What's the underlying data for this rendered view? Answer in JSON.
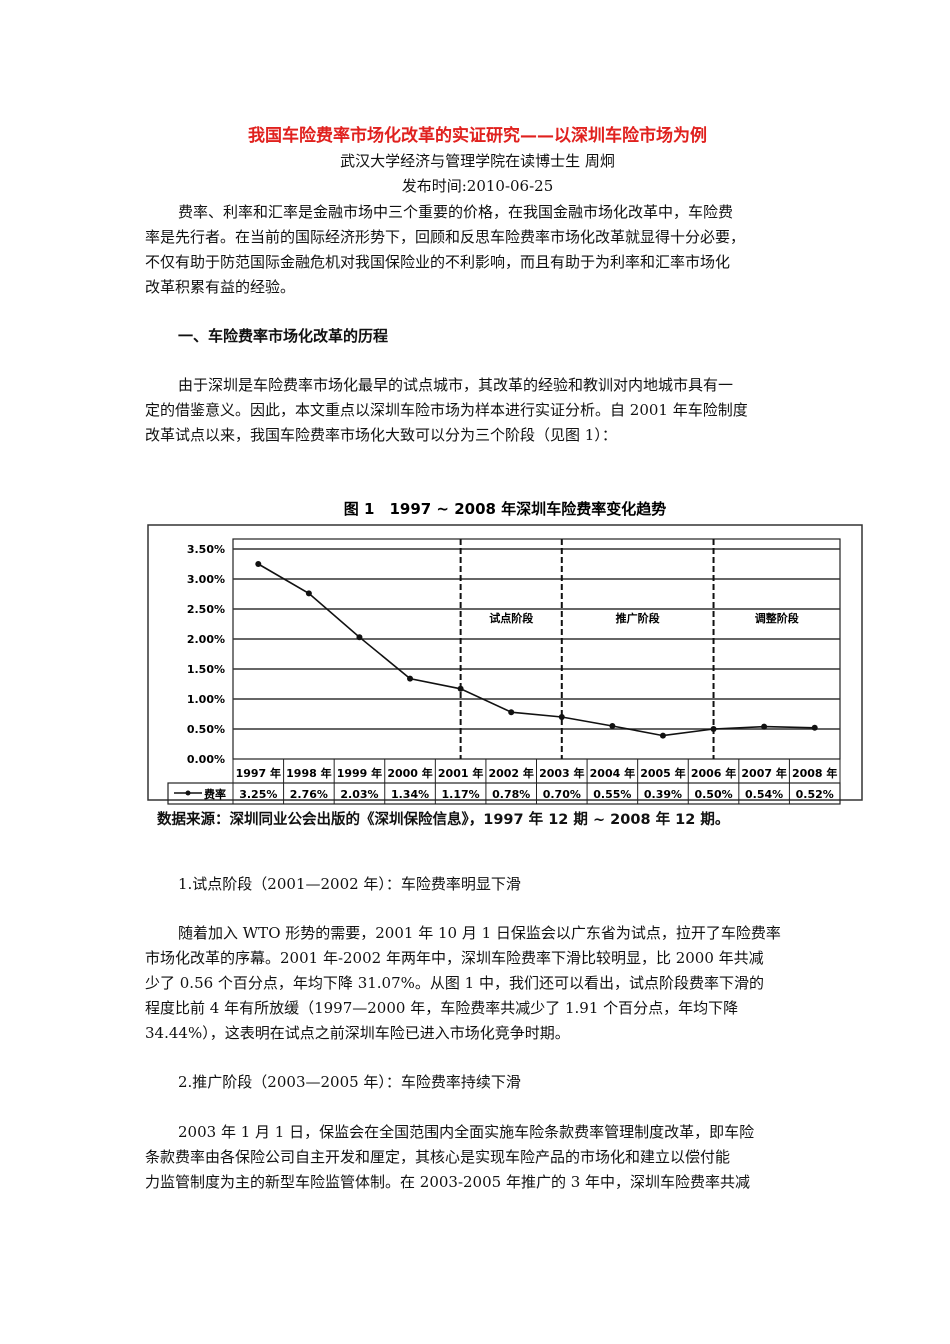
{
  "article": {
    "title": "我国车险费率市场化改革的实证研究——以深圳车险市场为例",
    "author": "武汉大学经济与管理学院在读博士生 周炯",
    "publish_date": "发布时间:2010-06-25",
    "p1": [
      "费率、利率和汇率是金融市场中三个重要的价格，在我国金融市场化改革中，车险费",
      "率是先行者。在当前的国际经济形势下，回顾和反思车险费率市场化改革就显得十分必要，",
      "不仅有助于防范国际金融危机对我国保险业的不利影响，而且有助于为利率和汇率市场化",
      "改革积累有益的经验。"
    ],
    "heading1": "一、车险费率市场化改革的历程",
    "p2": [
      "由于深圳是车险费率市场化最早的试点城市，其改革的经验和教训对内地城市具有一",
      "定的借鉴意义。因此，本文重点以深圳车险市场为样本进行实证分析。自 2001 年车险制度",
      "改革试点以来，我国车险费率市场化大致可以分为三个阶段（见图 1）："
    ],
    "sub1": "1.试点阶段（2001—2002 年）：车险费率明显下滑",
    "p3": [
      "随着加入 WTO 形势的需要，2001 年 10 月 1 日保监会以广东省为试点，拉开了车险费率",
      "市场化改革的序幕。2001 年-2002 年两年中，深圳车险费率下滑比较明显，比 2000 年共减",
      "少了 0.56 个百分点，年均下降 31.07%。从图 1 中，我们还可以看出，试点阶段费率下滑的",
      "程度比前 4 年有所放缓（1997—2000 年，车险费率共减少了 1.91 个百分点，年均下降",
      "34.44%），这表明在试点之前深圳车险已进入市场化竞争时期。"
    ],
    "sub2": "2.推广阶段（2003—2005 年）：车险费率持续下滑",
    "p4": [
      "2003 年 1 月 1 日，保监会在全国范围内全面实施车险条款费率管理制度改革，即车险",
      "条款费率由各保险公司自主开发和厘定，其核心是实现车险产品的市场化和建立以偿付能",
      "力监管制度为主的新型车险监管体制。在 2003-2005 年推广的 3 年中，深圳车险费率共减"
    ]
  },
  "colors": {
    "title": "#e0211e",
    "text": "#111111"
  },
  "chart_data": {
    "type": "line",
    "title": "图 1　1997 ~ 2008 年深圳车险费率变化趋势",
    "categories": [
      "1997 年",
      "1998 年",
      "1999 年",
      "2000 年",
      "2001 年",
      "2002 年",
      "2003 年",
      "2004 年",
      "2005 年",
      "2006 年",
      "2007 年",
      "2008 年"
    ],
    "series": [
      {
        "name": "费率",
        "values": [
          3.25,
          2.76,
          2.03,
          1.34,
          1.17,
          0.78,
          0.7,
          0.55,
          0.39,
          0.5,
          0.54,
          0.52
        ],
        "labels": [
          "3.25%",
          "2.76%",
          "2.03%",
          "1.34%",
          "1.17%",
          "0.78%",
          "0.70%",
          "0.55%",
          "0.39%",
          "0.50%",
          "0.54%",
          "0.52%"
        ]
      }
    ],
    "y_ticks": [
      "0.00%",
      "0.50%",
      "1.00%",
      "1.50%",
      "2.00%",
      "2.50%",
      "3.00%",
      "3.50%"
    ],
    "ylim": [
      0,
      3.5
    ],
    "grid": true,
    "data_table": true,
    "phase_dividers": [
      "2001 年",
      "2003 年",
      "2006 年"
    ],
    "phases": [
      {
        "label": "试点阶段",
        "from": "2001 年",
        "to": "2003 年"
      },
      {
        "label": "推广阶段",
        "from": "2003 年",
        "to": "2006 年"
      },
      {
        "label": "调整阶段",
        "from": "2006 年",
        "to": "2008 年"
      }
    ],
    "source": "数据来源：深圳同业公会出版的《深圳保险信息》，1997 年 12 期 ~ 2008 年 12 期。"
  }
}
